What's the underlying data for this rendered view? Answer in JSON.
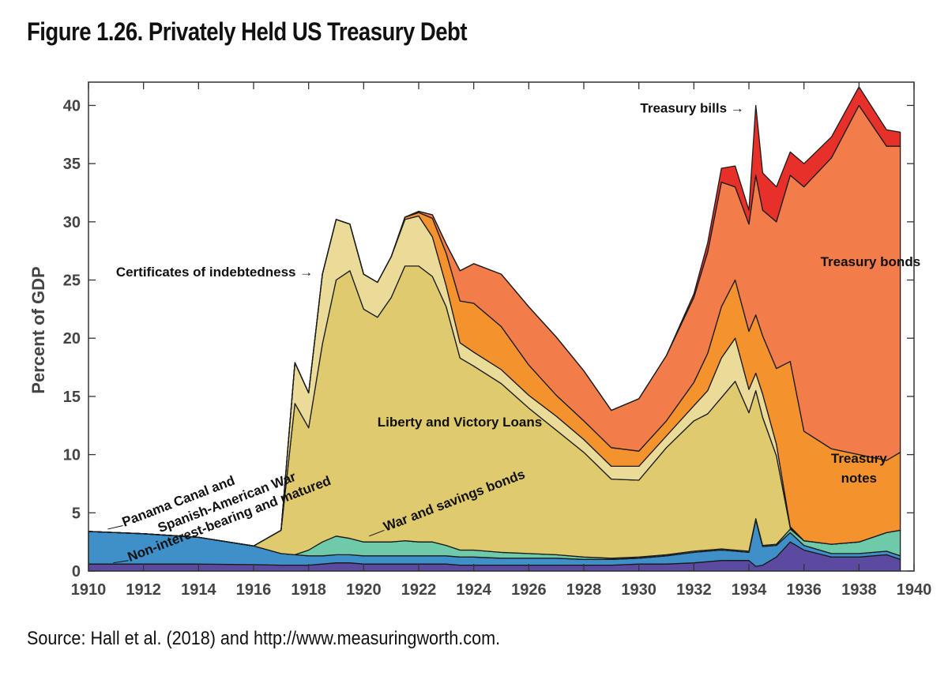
{
  "title": "Figure 1.26. Privately Held US Treasury Debt",
  "source": "Source: Hall et al. (2018) and http://www.measuringworth.com.",
  "chart_data": {
    "type": "area",
    "stacked": true,
    "ylabel": "Percent of GDP",
    "xlim": [
      1910,
      1940
    ],
    "ylim": [
      0,
      42
    ],
    "x_ticks": [
      1910,
      1912,
      1914,
      1916,
      1918,
      1920,
      1922,
      1924,
      1926,
      1928,
      1930,
      1932,
      1934,
      1936,
      1938,
      1940
    ],
    "y_ticks": [
      0,
      5,
      10,
      15,
      20,
      25,
      30,
      35,
      40
    ],
    "grid": false,
    "colors": {
      "Non-interest-bearing and matured": "#5b4a9f",
      "Panama Canal and Spanish-American War": "#3f8fc8",
      "War and savings bonds": "#6ecaa8",
      "Liberty and Victory Loans": "#dfca6d",
      "Certificates of indebtedness": "#eadc98",
      "Treasury notes": "#f4922e",
      "Treasury bonds": "#f37d4a",
      "Treasury bills": "#e8302a"
    },
    "x": [
      1910,
      1912,
      1914,
      1916,
      1917,
      1917.5,
      1918,
      1918.5,
      1919,
      1919.5,
      1920,
      1920.5,
      1921,
      1921.5,
      1922,
      1922.5,
      1923,
      1923.5,
      1924,
      1925,
      1926,
      1927,
      1928,
      1929,
      1930,
      1931,
      1932,
      1932.5,
      1933,
      1933.5,
      1934,
      1934.25,
      1934.5,
      1935,
      1935.5,
      1936,
      1937,
      1938,
      1939,
      1939.5
    ],
    "series": [
      {
        "name": "Non-interest-bearing and matured",
        "values": [
          0.6,
          0.6,
          0.6,
          0.55,
          0.5,
          0.5,
          0.5,
          0.6,
          0.7,
          0.7,
          0.6,
          0.6,
          0.6,
          0.6,
          0.6,
          0.6,
          0.6,
          0.5,
          0.5,
          0.5,
          0.5,
          0.5,
          0.5,
          0.5,
          0.6,
          0.6,
          0.7,
          0.8,
          0.9,
          0.9,
          0.9,
          0.4,
          0.5,
          1.2,
          2.5,
          1.8,
          1.2,
          1.2,
          1.4,
          1.0
        ]
      },
      {
        "name": "Panama Canal and Spanish-American War",
        "values": [
          2.8,
          2.6,
          2.3,
          1.6,
          1.0,
          0.9,
          0.8,
          0.7,
          0.7,
          0.7,
          0.7,
          0.7,
          0.7,
          0.7,
          0.7,
          0.7,
          0.7,
          0.7,
          0.7,
          0.6,
          0.6,
          0.6,
          0.5,
          0.5,
          0.5,
          0.7,
          0.9,
          0.9,
          0.9,
          0.8,
          0.7,
          4.0,
          1.6,
          1.0,
          0.8,
          0.4,
          0.3,
          0.3,
          0.3,
          0.3
        ]
      },
      {
        "name": "War and savings bonds",
        "values": [
          0,
          0,
          0,
          0,
          0,
          0,
          0.5,
          1.2,
          1.6,
          1.4,
          1.2,
          1.2,
          1.2,
          1.3,
          1.2,
          1.2,
          0.9,
          0.6,
          0.6,
          0.5,
          0.4,
          0.3,
          0.2,
          0.1,
          0.1,
          0.1,
          0.1,
          0.1,
          0.1,
          0.1,
          0.1,
          0.1,
          0.1,
          0.1,
          0.3,
          0.4,
          0.8,
          1.0,
          1.6,
          2.2
        ]
      },
      {
        "name": "Liberty and Victory Loans",
        "values": [
          0,
          0,
          0,
          0,
          2.0,
          13.0,
          10.5,
          17.0,
          22.0,
          23.0,
          20.0,
          19.3,
          21.0,
          23.6,
          23.7,
          22.8,
          20.5,
          16.5,
          15.8,
          14.5,
          12.5,
          10.7,
          9.0,
          6.8,
          6.6,
          9.2,
          11.2,
          11.7,
          13.0,
          14.5,
          11.9,
          11.0,
          11.0,
          7.6,
          0.1,
          0,
          0,
          0,
          0,
          0
        ]
      },
      {
        "name": "Certificates of indebtedness",
        "values": [
          0,
          0,
          0,
          0,
          0,
          3.5,
          3.0,
          6.0,
          5.2,
          4.0,
          3.0,
          3.0,
          3.5,
          4.0,
          4.3,
          3.4,
          1.8,
          1.3,
          1.2,
          1.2,
          1.1,
          1.2,
          1.1,
          1.1,
          1.2,
          1.0,
          1.3,
          2.0,
          3.4,
          3.7,
          2.0,
          1.5,
          2.0,
          1.0,
          0.1,
          0,
          0,
          0,
          0,
          0
        ]
      },
      {
        "name": "Treasury notes",
        "values": [
          0,
          0,
          0,
          0,
          0,
          0,
          0,
          0,
          0,
          0,
          0,
          0,
          0,
          0.2,
          0.3,
          1.6,
          2.8,
          3.6,
          4.2,
          3.7,
          2.6,
          1.8,
          1.6,
          1.6,
          1.3,
          1.3,
          2.0,
          3.2,
          4.4,
          5.0,
          5.0,
          5.0,
          5.0,
          6.5,
          14.2,
          9.4,
          8.2,
          7.5,
          6.2,
          6.7
        ]
      },
      {
        "name": "Treasury bonds",
        "values": [
          0,
          0,
          0,
          0,
          0,
          0,
          0,
          0,
          0,
          0,
          0,
          0,
          0,
          0,
          0.1,
          0.3,
          0.8,
          2.6,
          3.4,
          4.5,
          5.0,
          5.0,
          4.3,
          3.2,
          4.5,
          5.6,
          7.3,
          8.7,
          10.7,
          8.0,
          9.2,
          12.0,
          10.8,
          12.6,
          16.0,
          21.0,
          25.0,
          30.0,
          27.0,
          26.3
        ]
      },
      {
        "name": "Treasury bills",
        "values": [
          0,
          0,
          0,
          0,
          0,
          0,
          0,
          0,
          0,
          0,
          0,
          0,
          0,
          0,
          0,
          0,
          0,
          0,
          0,
          0,
          0,
          0,
          0,
          0,
          0,
          0,
          0.3,
          0.8,
          1.2,
          1.8,
          1.2,
          6.0,
          3.2,
          3.0,
          2.0,
          2.0,
          1.8,
          1.6,
          1.4,
          1.2
        ]
      }
    ],
    "annotations": [
      {
        "text": "Treasury bills →",
        "series": "Treasury bills"
      },
      {
        "text": "Treasury bonds",
        "series": "Treasury bonds"
      },
      {
        "text": "Certificates of indebtedness →",
        "series": "Certificates of indebtedness"
      },
      {
        "text": "Liberty and Victory Loans",
        "series": "Liberty and Victory Loans"
      },
      {
        "text": "Treasury",
        "series": "Treasury notes"
      },
      {
        "text": "notes",
        "series": "Treasury notes"
      },
      {
        "text": "Panama Canal and",
        "series": "Panama Canal and Spanish-American War"
      },
      {
        "text": "Spanish-American War",
        "series": "Panama Canal and Spanish-American War"
      },
      {
        "text": "Non-interest-bearing and matured",
        "series": "Non-interest-bearing and matured"
      },
      {
        "text": "War and savings bonds",
        "series": "War and savings bonds"
      }
    ]
  }
}
